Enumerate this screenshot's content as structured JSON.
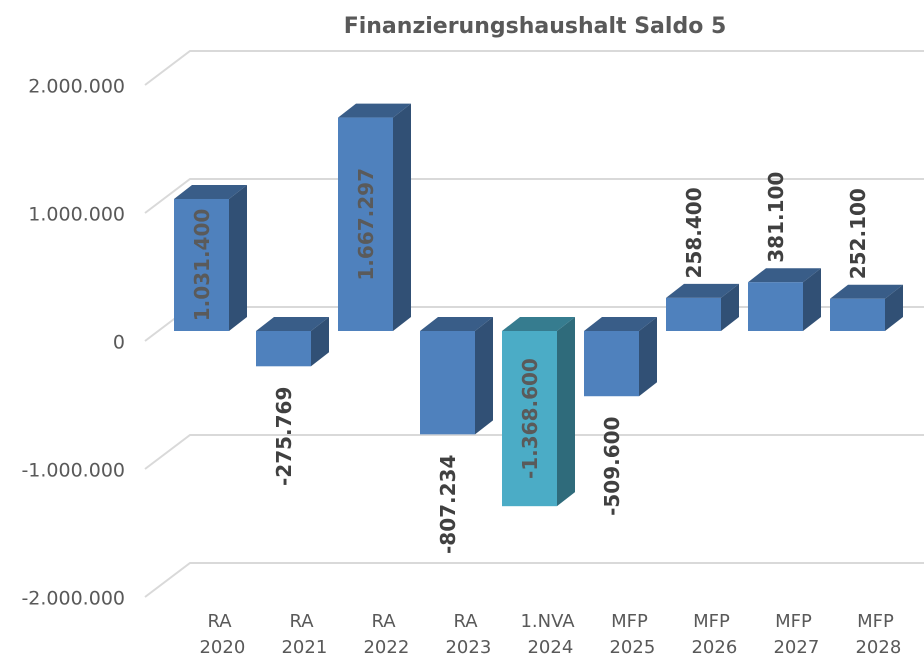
{
  "chart_data": {
    "type": "bar3d",
    "title": "Finanzierungshaushalt Saldo 5",
    "categories": [
      "RA 2020",
      "RA 2021",
      "RA 2022",
      "RA 2023",
      "1.NVA 2024",
      "MFP 2025",
      "MFP 2026",
      "MFP 2027",
      "MFP 2028"
    ],
    "values": [
      1031400,
      -275769,
      1667297,
      -807234,
      -1368600,
      -509600,
      258400,
      381100,
      252100
    ],
    "value_labels": [
      "1.031.400",
      "-275.769",
      "1.667.297",
      "-807.234",
      "-1.368.600",
      "-509.600",
      "258.400",
      "381.100",
      "252.100"
    ],
    "colors": [
      "#4f81bd",
      "#4f81bd",
      "#4f81bd",
      "#4f81bd",
      "#4bacc6",
      "#4f81bd",
      "#4f81bd",
      "#4f81bd",
      "#4f81bd"
    ],
    "ylim": [
      -2000000,
      2000000
    ],
    "yticks": [
      {
        "value": -2000000,
        "label": "-2.000.000"
      },
      {
        "value": -1000000,
        "label": "-1.000.000"
      },
      0,
      {
        "value": 1000000,
        "label": "1.000.000"
      },
      {
        "value": 2000000,
        "label": "2.000.000"
      }
    ],
    "grid": true
  }
}
